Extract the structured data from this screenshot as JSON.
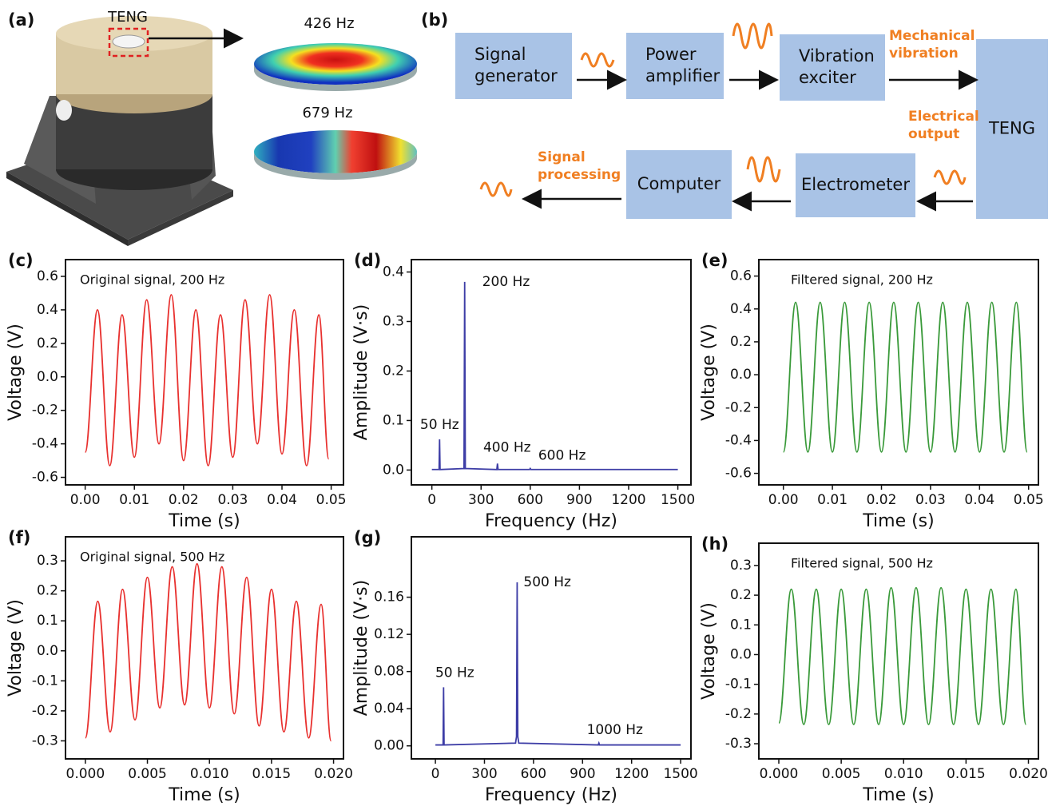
{
  "a": {
    "label": "(a)",
    "teng_label": "TENG",
    "modes": [
      "426 Hz",
      "679 Hz"
    ]
  },
  "b": {
    "label": "(b)",
    "nodes": [
      [
        "Signal",
        "generator"
      ],
      [
        "Power",
        "amplifier"
      ],
      [
        "Vibration",
        "exciter"
      ],
      [
        "TENG"
      ],
      [
        "Computer"
      ],
      [
        "Electrometer"
      ]
    ],
    "notes": [
      [
        "Mechanical",
        "vibration"
      ],
      [
        "Electrical",
        "output"
      ],
      [
        "Signal",
        "processing"
      ]
    ]
  },
  "chart_data": [
    {
      "type": "line",
      "curve": "smooth",
      "panel_label": "(c)",
      "annotation": "Original signal, 200 Hz",
      "x_label": "Time (s)",
      "y_label": "Voltage (V)",
      "color": "#e8312f",
      "x": [
        0,
        0.0025,
        0.005,
        0.0075,
        0.01,
        0.0125,
        0.015,
        0.0175,
        0.02,
        0.0225,
        0.025,
        0.0275,
        0.03,
        0.0325,
        0.035,
        0.0375,
        0.04,
        0.0425,
        0.045,
        0.0475,
        0.0495
      ],
      "values": [
        -0.45,
        0.4,
        -0.53,
        0.37,
        -0.48,
        0.46,
        -0.4,
        0.49,
        -0.5,
        0.4,
        -0.53,
        0.37,
        -0.48,
        0.46,
        -0.4,
        0.49,
        -0.46,
        0.4,
        -0.53,
        0.37,
        -0.49
      ],
      "xlim": [
        -0.004,
        0.0525
      ],
      "ylim": [
        -0.645,
        0.7
      ],
      "xticks": [
        {
          "value": 0,
          "label": "0.00"
        },
        0.01,
        0.02,
        0.03,
        0.04,
        0.05
      ],
      "yticks": [
        -0.6,
        -0.4,
        -0.2,
        {
          "value": 0,
          "label": "0.0"
        },
        0.2,
        0.4,
        0.6
      ]
    },
    {
      "type": "line",
      "curve": "linear",
      "panel_label": "(d)",
      "x_label": "Frequency (Hz)",
      "y_label": "Amplitude (V·s)",
      "color": "#3d3da6",
      "x": [
        0,
        44,
        47,
        50,
        196,
        200,
        204,
        396,
        400,
        404,
        596,
        600,
        604,
        1500
      ],
      "values": [
        0.001,
        0.001,
        0.062,
        0.001,
        0.003,
        0.38,
        0.003,
        0.001,
        0.013,
        0.001,
        0.001,
        0.003,
        0.001,
        0.001
      ],
      "peak_labels": [
        "50 Hz",
        "200 Hz",
        "400 Hz",
        "600 Hz"
      ],
      "xlim": [
        -125,
        1580
      ],
      "ylim": [
        -0.03,
        0.425
      ],
      "xticks": [
        0,
        300,
        600,
        900,
        1200,
        1500
      ],
      "yticks": [
        {
          "value": 0,
          "label": "0.0"
        },
        0.1,
        0.2,
        0.3,
        0.4
      ]
    },
    {
      "type": "line",
      "curve": "smooth",
      "panel_label": "(e)",
      "annotation": "Filtered signal, 200 Hz",
      "x_label": "Time (s)",
      "y_label": "Voltage (V)",
      "color": "#3a9a3a",
      "x": [
        0,
        0.0025,
        0.005,
        0.0075,
        0.01,
        0.0125,
        0.015,
        0.0175,
        0.02,
        0.0225,
        0.025,
        0.0275,
        0.03,
        0.0325,
        0.035,
        0.0375,
        0.04,
        0.0425,
        0.045,
        0.0475,
        0.0497
      ],
      "values": [
        -0.47,
        0.44,
        -0.47,
        0.44,
        -0.47,
        0.44,
        -0.47,
        0.44,
        -0.47,
        0.44,
        -0.47,
        0.44,
        -0.47,
        0.44,
        -0.47,
        0.44,
        -0.47,
        0.44,
        -0.47,
        0.44,
        -0.47
      ],
      "xlim": [
        -0.005,
        0.052
      ],
      "ylim": [
        -0.67,
        0.7
      ],
      "xticks": [
        {
          "value": 0,
          "label": "0.00"
        },
        0.01,
        0.02,
        0.03,
        0.04,
        0.05
      ],
      "yticks": [
        -0.6,
        -0.4,
        -0.2,
        {
          "value": 0,
          "label": "0.0"
        },
        0.2,
        0.4,
        0.6
      ]
    },
    {
      "type": "line",
      "curve": "smooth",
      "panel_label": "(f)",
      "annotation": "Original signal, 500 Hz",
      "x_label": "Time (s)",
      "y_label": "Voltage (V)",
      "color": "#e8312f",
      "x": [
        0,
        0.001,
        0.002,
        0.003,
        0.004,
        0.005,
        0.006,
        0.007,
        0.008,
        0.009,
        0.01,
        0.011,
        0.012,
        0.013,
        0.014,
        0.015,
        0.016,
        0.017,
        0.018,
        0.019,
        0.0198
      ],
      "values": [
        -0.29,
        0.165,
        -0.27,
        0.205,
        -0.23,
        0.245,
        -0.19,
        0.28,
        -0.18,
        0.29,
        -0.19,
        0.28,
        -0.21,
        0.245,
        -0.25,
        0.205,
        -0.27,
        0.165,
        -0.29,
        0.155,
        -0.3
      ],
      "xlim": [
        -0.0016,
        0.0208
      ],
      "ylim": [
        -0.36,
        0.38
      ],
      "xticks": [
        {
          "value": 0,
          "label": "0.000"
        },
        0.005,
        {
          "value": 0.01,
          "label": "0.010"
        },
        0.015,
        {
          "value": 0.02,
          "label": "0.020"
        }
      ],
      "yticks": [
        -0.3,
        -0.2,
        -0.1,
        {
          "value": 0,
          "label": "0.0"
        },
        0.1,
        0.2,
        0.3
      ]
    },
    {
      "type": "line",
      "curve": "linear",
      "panel_label": "(g)",
      "x_label": "Frequency (Hz)",
      "y_label": "Amplitude (V·s)",
      "color": "#3d3da6",
      "x": [
        0,
        47,
        50,
        53,
        490,
        496,
        500,
        504,
        510,
        996,
        1000,
        1004,
        1500
      ],
      "values": [
        0.001,
        0.001,
        0.063,
        0.001,
        0.003,
        0.01,
        0.176,
        0.01,
        0.003,
        0.001,
        0.003,
        0.001,
        0.001
      ],
      "peak_labels": [
        "50 Hz",
        "500 Hz",
        "1000 Hz"
      ],
      "xlim": [
        -147,
        1563
      ],
      "ylim": [
        -0.014,
        0.225
      ],
      "xticks": [
        0,
        300,
        600,
        900,
        1200,
        1500
      ],
      "yticks": [
        {
          "value": 0,
          "label": "0.00"
        },
        0.04,
        0.08,
        0.12,
        0.16
      ]
    },
    {
      "type": "line",
      "curve": "smooth",
      "panel_label": "(h)",
      "annotation": "Filtered signal, 500 Hz",
      "x_label": "Time (s)",
      "y_label": "Voltage (V)",
      "color": "#3a9a3a",
      "x": [
        0,
        0.001,
        0.002,
        0.003,
        0.004,
        0.005,
        0.006,
        0.007,
        0.008,
        0.009,
        0.01,
        0.011,
        0.012,
        0.013,
        0.014,
        0.015,
        0.016,
        0.017,
        0.018,
        0.019,
        0.0198
      ],
      "values": [
        -0.23,
        0.22,
        -0.235,
        0.22,
        -0.235,
        0.22,
        -0.235,
        0.22,
        -0.235,
        0.225,
        -0.235,
        0.225,
        -0.235,
        0.225,
        -0.235,
        0.22,
        -0.235,
        0.22,
        -0.235,
        0.22,
        -0.235
      ],
      "xlim": [
        -0.0016,
        0.0208
      ],
      "ylim": [
        -0.351,
        0.375
      ],
      "xticks": [
        {
          "value": 0,
          "label": "0.000"
        },
        0.005,
        {
          "value": 0.01,
          "label": "0.010"
        },
        0.015,
        {
          "value": 0.02,
          "label": "0.020"
        }
      ],
      "yticks": [
        -0.3,
        -0.2,
        -0.1,
        {
          "value": 0,
          "label": "0.0"
        },
        0.1,
        0.2,
        0.3
      ]
    }
  ]
}
